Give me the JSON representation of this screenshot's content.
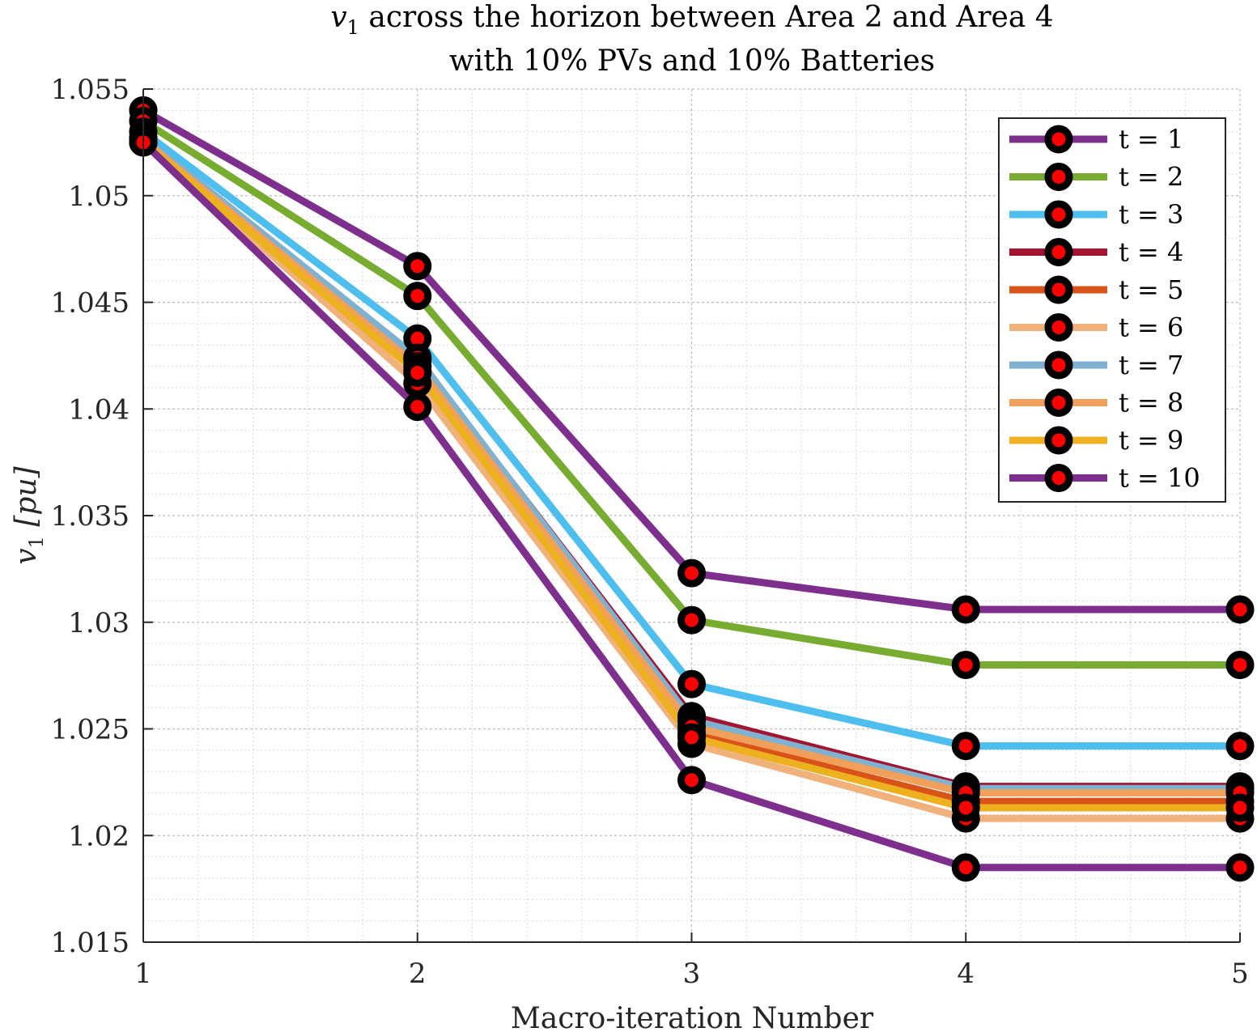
{
  "chart_data": {
    "type": "line",
    "title_line1_var": "v",
    "title_line1_sub": "1",
    "title_line1_rest": " across the horizon between Area 2 and Area 4",
    "title_line2": "with 10% PVs and 10% Batteries",
    "xlabel": "Macro-iteration Number",
    "ylabel_var": "v",
    "ylabel_sub": "1",
    "ylabel_unit": " [pu]",
    "xlim": [
      1,
      5
    ],
    "ylim": [
      1.015,
      1.055
    ],
    "x": [
      1,
      2,
      3,
      4,
      5
    ],
    "xticks": [
      "1",
      "2",
      "3",
      "4",
      "5"
    ],
    "yticks": [
      "1.015",
      "1.02",
      "1.025",
      "1.03",
      "1.035",
      "1.04",
      "1.045",
      "1.05",
      "1.055"
    ],
    "ytick_values": [
      1.015,
      1.02,
      1.025,
      1.03,
      1.035,
      1.04,
      1.045,
      1.05,
      1.055
    ],
    "grid": true,
    "minor_grid": true,
    "legend_position": "top-right",
    "marker_fill": "#ff0000",
    "marker_edge": "#000000",
    "series": [
      {
        "name": "t = 1",
        "color": "#7e2f8e",
        "values": [
          1.054,
          1.0467,
          1.0323,
          1.0306,
          1.0306
        ]
      },
      {
        "name": "t = 2",
        "color": "#77ac30",
        "values": [
          1.0535,
          1.0453,
          1.0301,
          1.028,
          1.028
        ]
      },
      {
        "name": "t = 3",
        "color": "#4dbeee",
        "values": [
          1.053,
          1.0433,
          1.0271,
          1.0242,
          1.0242
        ]
      },
      {
        "name": "t = 4",
        "color": "#a2142f",
        "values": [
          1.0527,
          1.0423,
          1.0256,
          1.0223,
          1.0223
        ]
      },
      {
        "name": "t = 5",
        "color": "#d95319",
        "values": [
          1.0526,
          1.0418,
          1.0248,
          1.0216,
          1.0216
        ]
      },
      {
        "name": "t = 6",
        "color": "#f0b27a",
        "values": [
          1.0525,
          1.0412,
          1.0243,
          1.0208,
          1.0208
        ]
      },
      {
        "name": "t = 7",
        "color": "#7fb2d0",
        "values": [
          1.0527,
          1.0424,
          1.0254,
          1.0222,
          1.0222
        ]
      },
      {
        "name": "t = 8",
        "color": "#f0a05a",
        "values": [
          1.0526,
          1.042,
          1.0251,
          1.022,
          1.022
        ]
      },
      {
        "name": "t = 9",
        "color": "#edb120",
        "values": [
          1.0525,
          1.0417,
          1.0246,
          1.0213,
          1.0213
        ]
      },
      {
        "name": "t = 10",
        "color": "#7e2f8e",
        "values": [
          1.0525,
          1.0401,
          1.0226,
          1.0185,
          1.0185
        ]
      }
    ]
  }
}
